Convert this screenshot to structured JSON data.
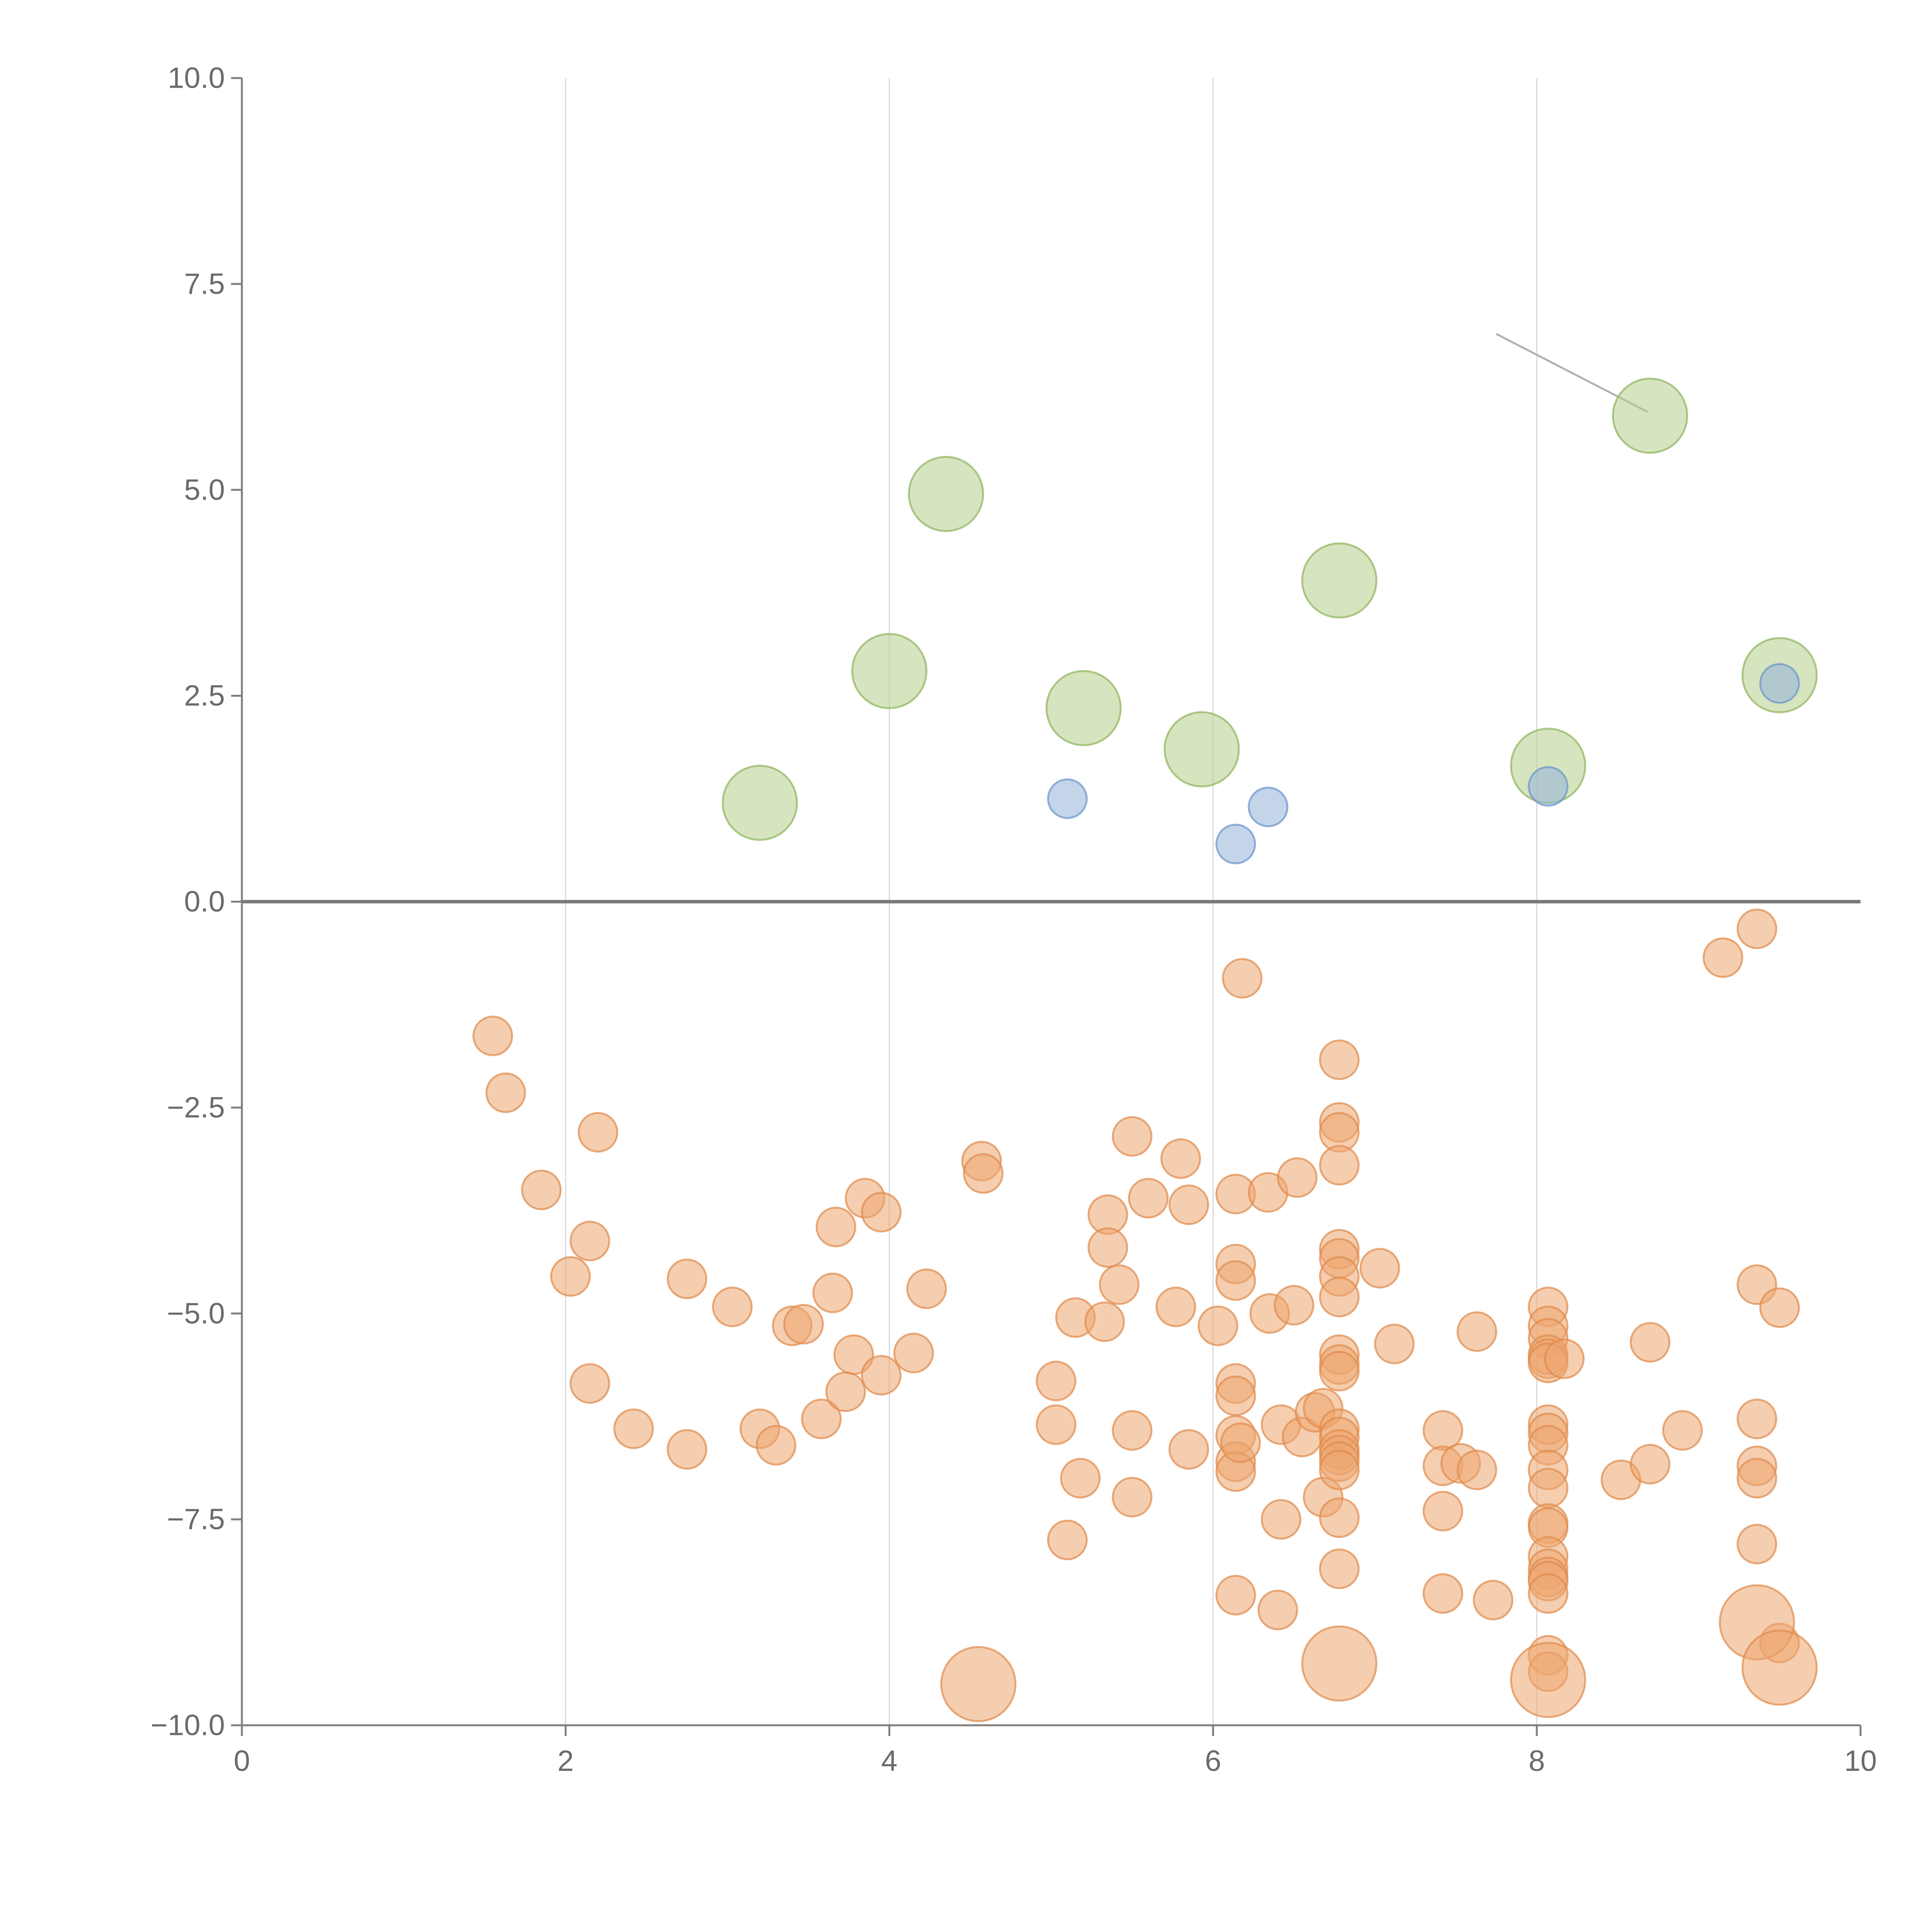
{
  "chart_data": {
    "type": "scatter",
    "title": "",
    "xlabel": "",
    "ylabel": "",
    "xlim": [
      0,
      10
    ],
    "ylim": [
      -10,
      10
    ],
    "x_ticks": [
      {
        "value": 0,
        "label": "0"
      },
      {
        "value": 2,
        "label": "2"
      },
      {
        "value": 4,
        "label": "4"
      },
      {
        "value": 6,
        "label": "6"
      },
      {
        "value": 8,
        "label": "8"
      },
      {
        "value": 10,
        "label": "10"
      }
    ],
    "y_ticks": [
      {
        "value": 10,
        "label": "10.0"
      },
      {
        "value": 7.5,
        "label": "7.5"
      },
      {
        "value": 5,
        "label": "5.0"
      },
      {
        "value": 2.5,
        "label": "2.5"
      },
      {
        "value": 0,
        "label": "0.0"
      },
      {
        "value": -2.5,
        "label": "−2.5"
      },
      {
        "value": -5,
        "label": "−5.0"
      },
      {
        "value": -7.5,
        "label": "−7.5"
      },
      {
        "value": -10,
        "label": "−10.0"
      }
    ],
    "x_grid": true,
    "y_grid": false,
    "zero_line": true,
    "legend": "none",
    "series": [
      {
        "name": "green",
        "color": "#b5d08d",
        "stroke": "#8db35a",
        "size": "large",
        "points": [
          [
            3.2,
            1.2
          ],
          [
            4.0,
            2.8
          ],
          [
            4.35,
            4.95
          ],
          [
            5.2,
            2.35
          ],
          [
            5.93,
            1.85
          ],
          [
            6.78,
            3.9
          ],
          [
            8.07,
            1.65
          ],
          [
            8.7,
            5.9
          ],
          [
            9.5,
            2.75
          ]
        ]
      },
      {
        "name": "blue",
        "color": "#93b2d9",
        "stroke": "#6a93c9",
        "size": "small",
        "points": [
          [
            5.1,
            1.25
          ],
          [
            6.14,
            0.7
          ],
          [
            6.34,
            1.15
          ],
          [
            8.07,
            1.4
          ],
          [
            9.5,
            2.65
          ]
        ]
      },
      {
        "name": "orange",
        "color": "#eda56f",
        "stroke": "#df8a4a",
        "size": "small",
        "points": [
          [
            1.55,
            -1.63
          ],
          [
            1.63,
            -2.32
          ],
          [
            2.2,
            -2.8
          ],
          [
            1.85,
            -3.5
          ],
          [
            2.15,
            -4.12
          ],
          [
            2.03,
            -4.55
          ],
          [
            2.15,
            -5.85
          ],
          [
            2.42,
            -6.4
          ],
          [
            2.75,
            -4.58
          ],
          [
            3.03,
            -4.92
          ],
          [
            2.75,
            -6.65
          ],
          [
            3.2,
            -6.4
          ],
          [
            3.3,
            -6.6
          ],
          [
            3.4,
            -5.15
          ],
          [
            3.47,
            -5.13
          ],
          [
            3.58,
            -6.28
          ],
          [
            3.65,
            -4.75
          ],
          [
            3.67,
            -3.95
          ],
          [
            3.73,
            -5.95
          ],
          [
            3.78,
            -5.5
          ],
          [
            3.85,
            -3.6
          ],
          [
            3.95,
            -3.77
          ],
          [
            3.95,
            -5.75
          ],
          [
            4.15,
            -5.48
          ],
          [
            4.23,
            -4.7
          ],
          [
            4.57,
            -3.15
          ],
          [
            4.58,
            -3.3
          ],
          [
            5.03,
            -5.82
          ],
          [
            5.03,
            -6.35
          ],
          [
            5.1,
            -7.75
          ],
          [
            5.15,
            -5.05
          ],
          [
            5.18,
            -7.0
          ],
          [
            5.33,
            -5.1
          ],
          [
            5.35,
            -3.8
          ],
          [
            5.35,
            -4.2
          ],
          [
            5.42,
            -4.65
          ],
          [
            5.5,
            -2.85
          ],
          [
            5.5,
            -6.42
          ],
          [
            5.5,
            -7.23
          ],
          [
            5.6,
            -3.6
          ],
          [
            5.77,
            -4.92
          ],
          [
            5.8,
            -3.12
          ],
          [
            5.85,
            -3.68
          ],
          [
            5.85,
            -6.65
          ],
          [
            6.03,
            -5.15
          ],
          [
            6.14,
            -3.55
          ],
          [
            6.14,
            -4.4
          ],
          [
            6.14,
            -4.6
          ],
          [
            6.14,
            -5.85
          ],
          [
            6.14,
            -6.0
          ],
          [
            6.14,
            -6.48
          ],
          [
            6.14,
            -6.8
          ],
          [
            6.14,
            -6.92
          ],
          [
            6.17,
            -6.57
          ],
          [
            6.14,
            -8.42
          ],
          [
            6.18,
            -0.93
          ],
          [
            6.34,
            -3.53
          ],
          [
            6.35,
            -5.0
          ],
          [
            6.42,
            -6.35
          ],
          [
            6.42,
            -7.5
          ],
          [
            6.4,
            -8.6
          ],
          [
            6.5,
            -4.9
          ],
          [
            6.52,
            -3.35
          ],
          [
            6.55,
            -6.5
          ],
          [
            6.63,
            -6.2
          ],
          [
            6.68,
            -6.15
          ],
          [
            6.68,
            -7.23
          ],
          [
            6.78,
            -1.92
          ],
          [
            6.78,
            -2.68
          ],
          [
            6.78,
            -2.8
          ],
          [
            6.78,
            -3.2
          ],
          [
            6.78,
            -4.22
          ],
          [
            6.78,
            -4.33
          ],
          [
            6.78,
            -4.55
          ],
          [
            6.78,
            -4.8
          ],
          [
            6.78,
            -5.5
          ],
          [
            6.78,
            -5.62
          ],
          [
            6.78,
            -5.7
          ],
          [
            6.78,
            -6.4
          ],
          [
            6.78,
            -6.5
          ],
          [
            6.78,
            -6.65
          ],
          [
            6.78,
            -6.72
          ],
          [
            6.78,
            -6.8
          ],
          [
            6.78,
            -6.9
          ],
          [
            6.78,
            -7.48
          ],
          [
            6.78,
            -8.1
          ],
          [
            7.03,
            -4.45
          ],
          [
            7.12,
            -5.37
          ],
          [
            7.42,
            -6.42
          ],
          [
            7.42,
            -6.85
          ],
          [
            7.42,
            -7.4
          ],
          [
            7.42,
            -8.4
          ],
          [
            7.53,
            -6.82
          ],
          [
            7.63,
            -5.22
          ],
          [
            7.63,
            -6.9
          ],
          [
            7.73,
            -8.48
          ],
          [
            8.07,
            -4.92
          ],
          [
            8.07,
            -5.15
          ],
          [
            8.07,
            -5.3
          ],
          [
            8.07,
            -5.5
          ],
          [
            8.07,
            -5.55
          ],
          [
            8.07,
            -5.6
          ],
          [
            8.07,
            -6.35
          ],
          [
            8.07,
            -6.45
          ],
          [
            8.07,
            -6.6
          ],
          [
            8.07,
            -6.9
          ],
          [
            8.07,
            -7.12
          ],
          [
            8.07,
            -7.55
          ],
          [
            8.07,
            -7.6
          ],
          [
            8.07,
            -7.95
          ],
          [
            8.07,
            -8.1
          ],
          [
            8.07,
            -8.2
          ],
          [
            8.07,
            -8.25
          ],
          [
            8.07,
            -8.4
          ],
          [
            8.07,
            -9.15
          ],
          [
            8.07,
            -9.35
          ],
          [
            8.17,
            -5.55
          ],
          [
            8.52,
            -7.02
          ],
          [
            8.7,
            -5.35
          ],
          [
            8.7,
            -6.83
          ],
          [
            8.9,
            -6.42
          ],
          [
            9.15,
            -0.68
          ],
          [
            9.36,
            -0.33
          ],
          [
            9.36,
            -4.65
          ],
          [
            9.36,
            -6.28
          ],
          [
            9.36,
            -6.85
          ],
          [
            9.36,
            -7.0
          ],
          [
            9.36,
            -7.8
          ],
          [
            9.5,
            -4.93
          ],
          [
            9.5,
            -9.0
          ]
        ]
      },
      {
        "name": "orange-large",
        "color": "#eda56f",
        "stroke": "#df8a4a",
        "size": "large",
        "points": [
          [
            4.55,
            -9.5
          ],
          [
            6.78,
            -9.25
          ],
          [
            8.07,
            -9.45
          ],
          [
            9.36,
            -8.75
          ],
          [
            9.5,
            -9.3
          ]
        ]
      }
    ]
  }
}
